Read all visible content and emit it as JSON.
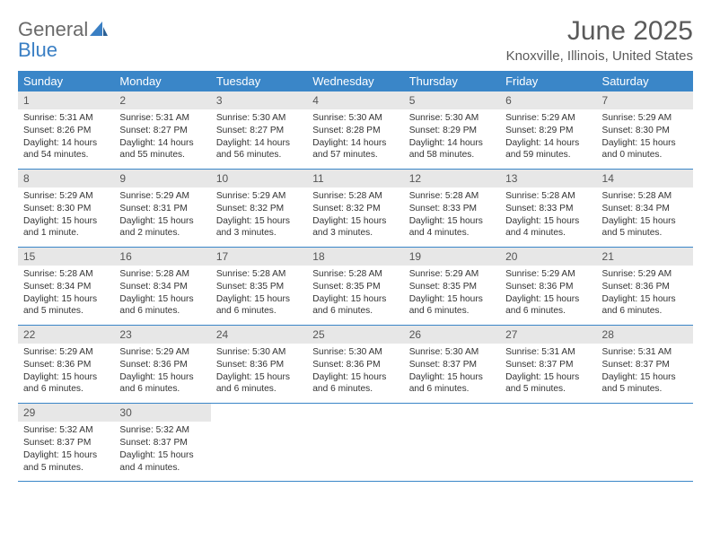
{
  "logo": {
    "text1": "General",
    "text2": "Blue"
  },
  "title": "June 2025",
  "location": "Knoxville, Illinois, United States",
  "colors": {
    "header_blue": "#3a86c8",
    "daynum_bg": "#e7e7e7",
    "text_gray": "#5a5a5a",
    "logo_gray": "#6a6a6a",
    "logo_blue": "#3a7fc4"
  },
  "days_of_week": [
    "Sunday",
    "Monday",
    "Tuesday",
    "Wednesday",
    "Thursday",
    "Friday",
    "Saturday"
  ],
  "weeks": [
    [
      {
        "n": "1",
        "sunrise": "5:31 AM",
        "sunset": "8:26 PM",
        "daylight": "14 hours and 54 minutes."
      },
      {
        "n": "2",
        "sunrise": "5:31 AM",
        "sunset": "8:27 PM",
        "daylight": "14 hours and 55 minutes."
      },
      {
        "n": "3",
        "sunrise": "5:30 AM",
        "sunset": "8:27 PM",
        "daylight": "14 hours and 56 minutes."
      },
      {
        "n": "4",
        "sunrise": "5:30 AM",
        "sunset": "8:28 PM",
        "daylight": "14 hours and 57 minutes."
      },
      {
        "n": "5",
        "sunrise": "5:30 AM",
        "sunset": "8:29 PM",
        "daylight": "14 hours and 58 minutes."
      },
      {
        "n": "6",
        "sunrise": "5:29 AM",
        "sunset": "8:29 PM",
        "daylight": "14 hours and 59 minutes."
      },
      {
        "n": "7",
        "sunrise": "5:29 AM",
        "sunset": "8:30 PM",
        "daylight": "15 hours and 0 minutes."
      }
    ],
    [
      {
        "n": "8",
        "sunrise": "5:29 AM",
        "sunset": "8:30 PM",
        "daylight": "15 hours and 1 minute."
      },
      {
        "n": "9",
        "sunrise": "5:29 AM",
        "sunset": "8:31 PM",
        "daylight": "15 hours and 2 minutes."
      },
      {
        "n": "10",
        "sunrise": "5:29 AM",
        "sunset": "8:32 PM",
        "daylight": "15 hours and 3 minutes."
      },
      {
        "n": "11",
        "sunrise": "5:28 AM",
        "sunset": "8:32 PM",
        "daylight": "15 hours and 3 minutes."
      },
      {
        "n": "12",
        "sunrise": "5:28 AM",
        "sunset": "8:33 PM",
        "daylight": "15 hours and 4 minutes."
      },
      {
        "n": "13",
        "sunrise": "5:28 AM",
        "sunset": "8:33 PM",
        "daylight": "15 hours and 4 minutes."
      },
      {
        "n": "14",
        "sunrise": "5:28 AM",
        "sunset": "8:34 PM",
        "daylight": "15 hours and 5 minutes."
      }
    ],
    [
      {
        "n": "15",
        "sunrise": "5:28 AM",
        "sunset": "8:34 PM",
        "daylight": "15 hours and 5 minutes."
      },
      {
        "n": "16",
        "sunrise": "5:28 AM",
        "sunset": "8:34 PM",
        "daylight": "15 hours and 6 minutes."
      },
      {
        "n": "17",
        "sunrise": "5:28 AM",
        "sunset": "8:35 PM",
        "daylight": "15 hours and 6 minutes."
      },
      {
        "n": "18",
        "sunrise": "5:28 AM",
        "sunset": "8:35 PM",
        "daylight": "15 hours and 6 minutes."
      },
      {
        "n": "19",
        "sunrise": "5:29 AM",
        "sunset": "8:35 PM",
        "daylight": "15 hours and 6 minutes."
      },
      {
        "n": "20",
        "sunrise": "5:29 AM",
        "sunset": "8:36 PM",
        "daylight": "15 hours and 6 minutes."
      },
      {
        "n": "21",
        "sunrise": "5:29 AM",
        "sunset": "8:36 PM",
        "daylight": "15 hours and 6 minutes."
      }
    ],
    [
      {
        "n": "22",
        "sunrise": "5:29 AM",
        "sunset": "8:36 PM",
        "daylight": "15 hours and 6 minutes."
      },
      {
        "n": "23",
        "sunrise": "5:29 AM",
        "sunset": "8:36 PM",
        "daylight": "15 hours and 6 minutes."
      },
      {
        "n": "24",
        "sunrise": "5:30 AM",
        "sunset": "8:36 PM",
        "daylight": "15 hours and 6 minutes."
      },
      {
        "n": "25",
        "sunrise": "5:30 AM",
        "sunset": "8:36 PM",
        "daylight": "15 hours and 6 minutes."
      },
      {
        "n": "26",
        "sunrise": "5:30 AM",
        "sunset": "8:37 PM",
        "daylight": "15 hours and 6 minutes."
      },
      {
        "n": "27",
        "sunrise": "5:31 AM",
        "sunset": "8:37 PM",
        "daylight": "15 hours and 5 minutes."
      },
      {
        "n": "28",
        "sunrise": "5:31 AM",
        "sunset": "8:37 PM",
        "daylight": "15 hours and 5 minutes."
      }
    ],
    [
      {
        "n": "29",
        "sunrise": "5:32 AM",
        "sunset": "8:37 PM",
        "daylight": "15 hours and 5 minutes."
      },
      {
        "n": "30",
        "sunrise": "5:32 AM",
        "sunset": "8:37 PM",
        "daylight": "15 hours and 4 minutes."
      },
      {
        "empty": true
      },
      {
        "empty": true
      },
      {
        "empty": true
      },
      {
        "empty": true
      },
      {
        "empty": true
      }
    ]
  ],
  "labels": {
    "sunrise": "Sunrise: ",
    "sunset": "Sunset: ",
    "daylight": "Daylight: "
  }
}
